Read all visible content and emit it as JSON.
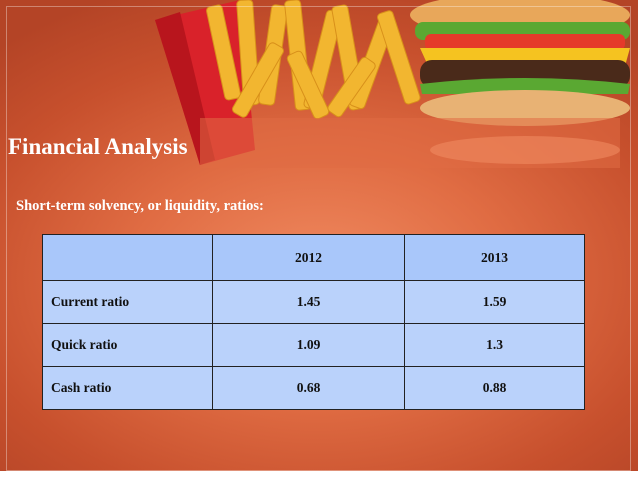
{
  "slide": {
    "title": "Financial Analysis",
    "subtitle": "Short-term solvency, or liquidity, ratios:"
  },
  "table": {
    "headers": [
      "",
      "2012",
      "2013"
    ],
    "rows": [
      {
        "label": "Current ratio",
        "y2012": "1.45",
        "y2013": "1.59"
      },
      {
        "label": "Quick ratio",
        "y2012": "1.09",
        "y2013": "1.3"
      },
      {
        "label": "Cash ratio",
        "y2012": "0.68",
        "y2013": "0.88"
      }
    ]
  }
}
